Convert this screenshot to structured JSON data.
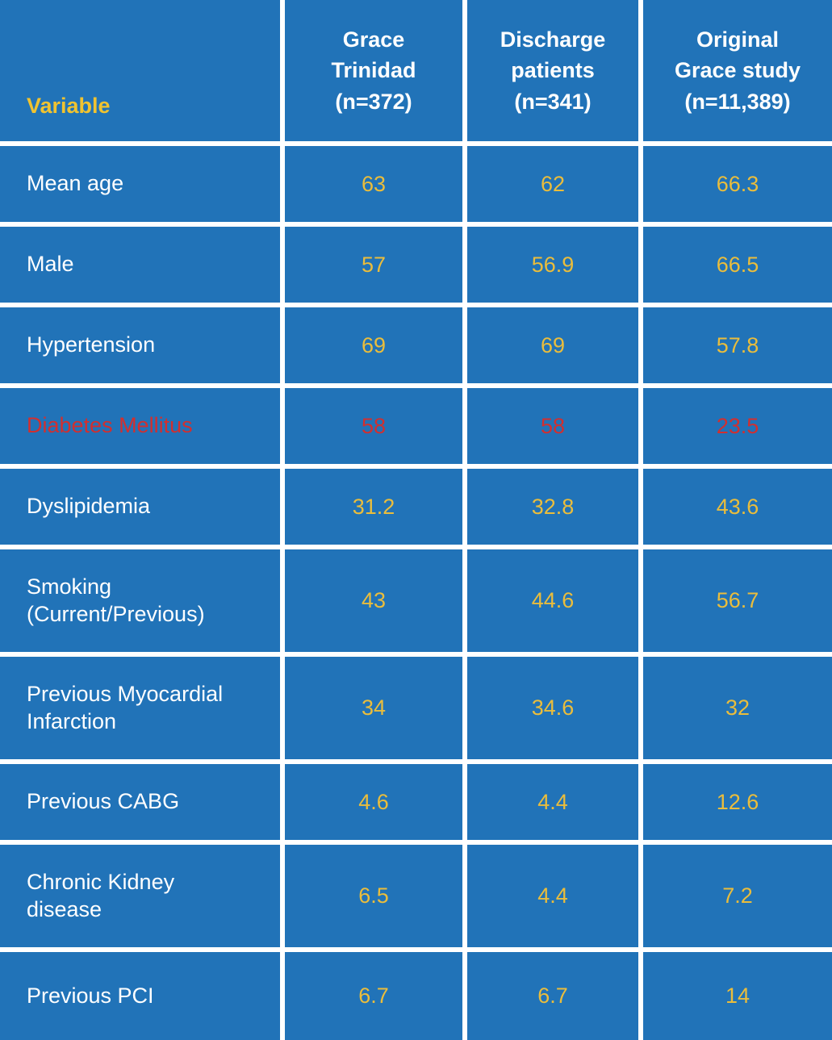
{
  "colors": {
    "background_blue": "#2173b8",
    "gridline_white": "#ffffff",
    "label_white": "#ffffff",
    "value_gold": "#eabd3c",
    "variable_header_gold": "#f0c330",
    "highlight_red": "#d22f2f"
  },
  "table": {
    "variable_header": "Variable",
    "columns": [
      "Grace\nTrinidad\n(n=372)",
      "Discharge\npatients\n(n=341)",
      "Original\nGrace study\n(n=11,389)"
    ],
    "rows": [
      {
        "variable": "Mean age",
        "values": [
          "63",
          "62",
          "66.3"
        ],
        "highlight": false
      },
      {
        "variable": "Male",
        "values": [
          "57",
          "56.9",
          "66.5"
        ],
        "highlight": false
      },
      {
        "variable": "Hypertension",
        "values": [
          "69",
          "69",
          "57.8"
        ],
        "highlight": false
      },
      {
        "variable": "Diabetes Mellitus",
        "values": [
          "58",
          "58",
          "23.5"
        ],
        "highlight": true
      },
      {
        "variable": "Dyslipidemia",
        "values": [
          "31.2",
          "32.8",
          "43.6"
        ],
        "highlight": false
      },
      {
        "variable": "Smoking (Current/Previous)",
        "values": [
          "43",
          "44.6",
          "56.7"
        ],
        "highlight": false
      },
      {
        "variable": "Previous Myocardial Infarction",
        "values": [
          "34",
          "34.6",
          "32"
        ],
        "highlight": false
      },
      {
        "variable": "Previous CABG",
        "values": [
          "4.6",
          "4.4",
          "12.6"
        ],
        "highlight": false
      },
      {
        "variable": "Chronic Kidney disease",
        "values": [
          "6.5",
          "4.4",
          "7.2"
        ],
        "highlight": false
      },
      {
        "variable": "Previous PCI",
        "values": [
          "6.7",
          "6.7",
          "14"
        ],
        "highlight": false
      }
    ]
  },
  "chart_data": {
    "type": "table",
    "title": "",
    "columns": [
      "Variable",
      "Grace Trinidad (n=372)",
      "Discharge patients (n=341)",
      "Original Grace study (n=11,389)"
    ],
    "rows": [
      [
        "Mean age",
        63,
        62,
        66.3
      ],
      [
        "Male",
        57,
        56.9,
        66.5
      ],
      [
        "Hypertension",
        69,
        69,
        57.8
      ],
      [
        "Diabetes Mellitus",
        58,
        58,
        23.5
      ],
      [
        "Dyslipidemia",
        31.2,
        32.8,
        43.6
      ],
      [
        "Smoking (Current/Previous)",
        43,
        44.6,
        56.7
      ],
      [
        "Previous Myocardial Infarction",
        34,
        34.6,
        32
      ],
      [
        "Previous CABG",
        4.6,
        4.4,
        12.6
      ],
      [
        "Chronic Kidney disease",
        6.5,
        4.4,
        7.2
      ],
      [
        "Previous PCI",
        6.7,
        6.7,
        14
      ]
    ],
    "highlighted_row": "Diabetes Mellitus",
    "layout_hints": {
      "grid": "white gridlines on blue background",
      "value_color": "gold",
      "highlight_color": "red"
    }
  }
}
